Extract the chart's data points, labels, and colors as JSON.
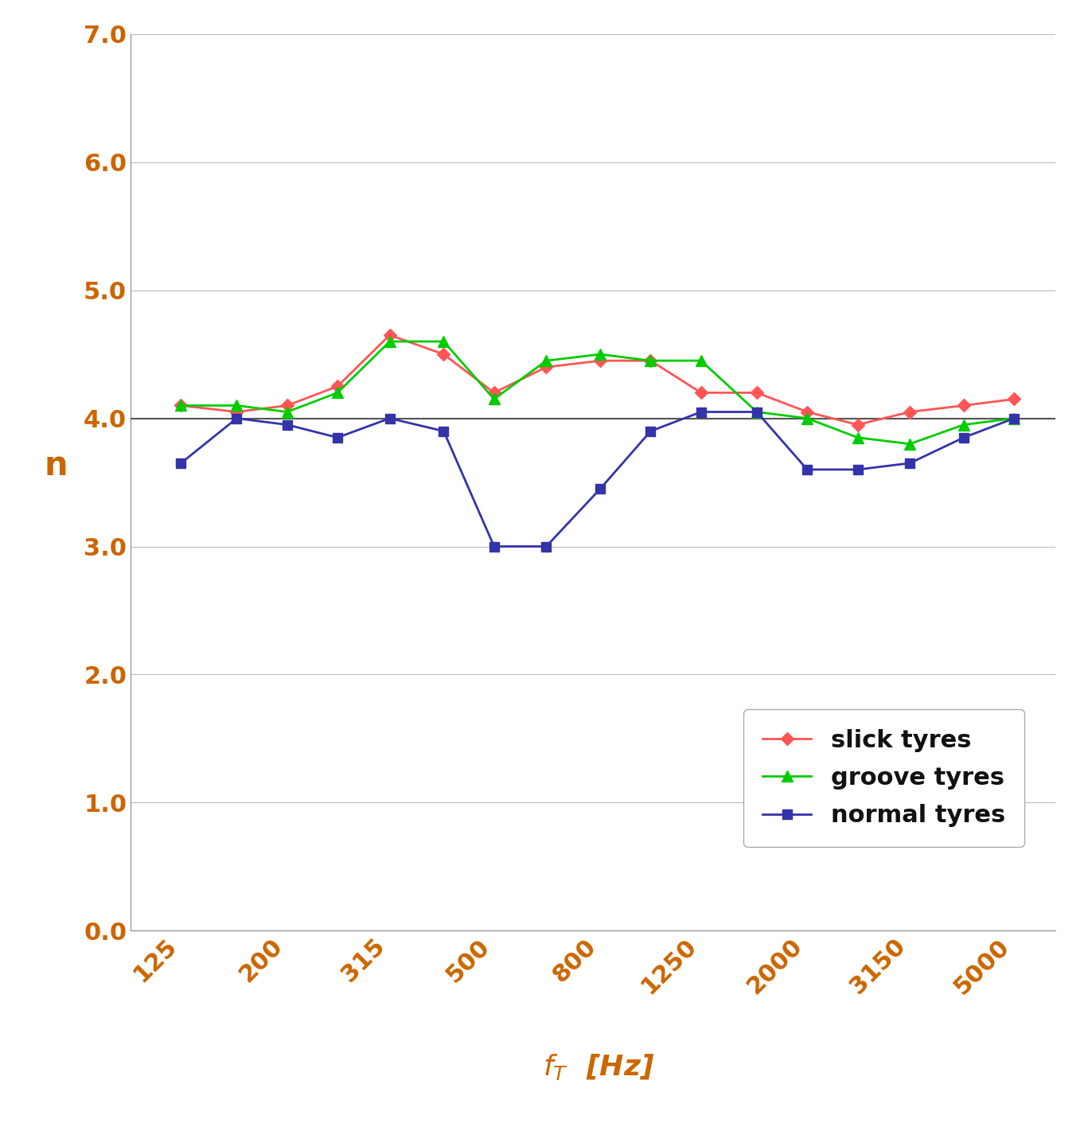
{
  "x_positions": [
    125,
    160,
    200,
    250,
    315,
    400,
    500,
    630,
    800,
    1000,
    1250,
    1600,
    2000,
    2500,
    3150,
    4000,
    5000
  ],
  "x_tick_positions": [
    125,
    200,
    315,
    500,
    800,
    1250,
    2000,
    3150,
    5000
  ],
  "x_tick_labels": [
    "125",
    "200",
    "315",
    "500",
    "800",
    "1250",
    "2000",
    "3150",
    "5000"
  ],
  "slick_tyres": [
    4.1,
    4.05,
    4.1,
    4.25,
    4.65,
    4.5,
    4.2,
    4.4,
    4.45,
    4.45,
    4.2,
    4.2,
    4.05,
    3.95,
    4.05,
    4.1,
    4.15
  ],
  "groove_tyres": [
    4.1,
    4.1,
    4.05,
    4.2,
    4.6,
    4.6,
    4.15,
    4.45,
    4.5,
    4.45,
    4.45,
    4.05,
    4.0,
    3.85,
    3.8,
    3.95,
    4.0
  ],
  "normal_tyres": [
    3.65,
    4.0,
    3.95,
    3.85,
    4.0,
    3.9,
    3.0,
    3.0,
    3.45,
    3.9,
    4.05,
    4.05,
    3.6,
    3.6,
    3.65,
    3.85,
    4.0
  ],
  "slick_color": "#FF5555",
  "groove_color": "#00CC00",
  "normal_color": "#3333AA",
  "ylabel": "n",
  "ylim": [
    0.0,
    7.0
  ],
  "yticks": [
    0.0,
    1.0,
    2.0,
    3.0,
    4.0,
    5.0,
    6.0,
    7.0
  ],
  "hline_y": 4.0,
  "legend_labels": [
    "slick tyres",
    "groove tyres",
    "normal tyres"
  ],
  "background_color": "#FFFFFF",
  "tick_label_color": "#CC6600",
  "axis_label_color": "#CC6600",
  "legend_fontsize": 22,
  "tick_fontsize": 22,
  "ylabel_fontsize": 30,
  "xlabel_fontsize": 26,
  "grid_color": "#BBBBBB",
  "hline_color": "#555555"
}
